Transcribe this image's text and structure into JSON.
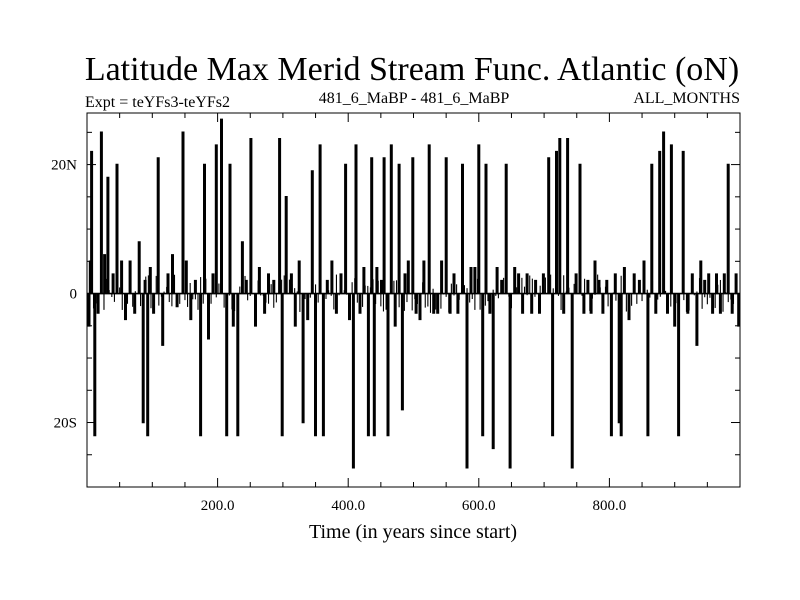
{
  "chart_data": {
    "type": "line",
    "title": "Latitude Max Merid Stream Func. Atlantic (oN)",
    "subtitle_left": "Expt = teYFs3-teYFs2",
    "subtitle_center": "481_6_MaBP - 481_6_MaBP",
    "subtitle_right": "ALL_MONTHS",
    "xlabel": "Time (in years since start)",
    "ylabel": "",
    "xlim": [
      0,
      1000
    ],
    "ylim": [
      -30,
      28
    ],
    "grid": false,
    "xticks": [
      {
        "value": 200,
        "label": "200.0"
      },
      {
        "value": 400,
        "label": "400.0"
      },
      {
        "value": 600,
        "label": "600.0"
      },
      {
        "value": 800,
        "label": "800.0"
      }
    ],
    "yticks": [
      {
        "value": 20,
        "label": "20N"
      },
      {
        "value": 0,
        "label": "0"
      },
      {
        "value": -20,
        "label": "20S"
      }
    ],
    "series": [
      {
        "values_note": "",
        "spikes": [
          [
            3,
            -5
          ],
          [
            5,
            5
          ],
          [
            7,
            22
          ],
          [
            12,
            -22
          ],
          [
            17,
            -3
          ],
          [
            22,
            25
          ],
          [
            27,
            6
          ],
          [
            32,
            18
          ],
          [
            40,
            3
          ],
          [
            46,
            20
          ],
          [
            53,
            5
          ],
          [
            59,
            -4
          ],
          [
            66,
            5
          ],
          [
            73,
            -3
          ],
          [
            80,
            8
          ],
          [
            86,
            -20
          ],
          [
            89,
            2
          ],
          [
            93,
            -22
          ],
          [
            97,
            4
          ],
          [
            102,
            -3
          ],
          [
            109,
            21
          ],
          [
            116,
            -8
          ],
          [
            124,
            3
          ],
          [
            131,
            6
          ],
          [
            138,
            -2
          ],
          [
            147,
            25
          ],
          [
            152,
            5
          ],
          [
            159,
            -4
          ],
          [
            166,
            2
          ],
          [
            174,
            -22
          ],
          [
            180,
            20
          ],
          [
            186,
            -7
          ],
          [
            193,
            3
          ],
          [
            198,
            23
          ],
          [
            206,
            27
          ],
          [
            214,
            -22
          ],
          [
            219,
            20
          ],
          [
            224,
            -5
          ],
          [
            231,
            -22
          ],
          [
            238,
            8
          ],
          [
            244,
            2
          ],
          [
            251,
            24
          ],
          [
            258,
            -5
          ],
          [
            264,
            4
          ],
          [
            272,
            -3
          ],
          [
            278,
            3
          ],
          [
            286,
            2
          ],
          [
            295,
            24
          ],
          [
            299,
            -22
          ],
          [
            305,
            15
          ],
          [
            313,
            3
          ],
          [
            319,
            -5
          ],
          [
            325,
            5
          ],
          [
            331,
            -20
          ],
          [
            338,
            -4
          ],
          [
            345,
            19
          ],
          [
            350,
            -22
          ],
          [
            357,
            23
          ],
          [
            362,
            -22
          ],
          [
            368,
            2
          ],
          [
            375,
            5
          ],
          [
            382,
            -3
          ],
          [
            389,
            3
          ],
          [
            396,
            20
          ],
          [
            402,
            -4
          ],
          [
            408,
            -27
          ],
          [
            412,
            23
          ],
          [
            418,
            -3
          ],
          [
            424,
            4
          ],
          [
            431,
            -22
          ],
          [
            436,
            21
          ],
          [
            440,
            -22
          ],
          [
            444,
            4
          ],
          [
            451,
            2
          ],
          [
            455,
            21
          ],
          [
            461,
            -22
          ],
          [
            466,
            23
          ],
          [
            472,
            -5
          ],
          [
            478,
            20
          ],
          [
            483,
            -18
          ],
          [
            487,
            3
          ],
          [
            492,
            5
          ],
          [
            499,
            21
          ],
          [
            504,
            -3
          ],
          [
            510,
            -4
          ],
          [
            516,
            5
          ],
          [
            524,
            23
          ],
          [
            531,
            -3
          ],
          [
            537,
            -3
          ],
          [
            543,
            5
          ],
          [
            550,
            21
          ],
          [
            556,
            -3
          ],
          [
            562,
            3
          ],
          [
            568,
            -3
          ],
          [
            575,
            20
          ],
          [
            582,
            -27
          ],
          [
            588,
            4
          ],
          [
            594,
            4
          ],
          [
            600,
            23
          ],
          [
            606,
            -22
          ],
          [
            611,
            20
          ],
          [
            617,
            -3
          ],
          [
            622,
            -24
          ],
          [
            628,
            4
          ],
          [
            635,
            2
          ],
          [
            642,
            20
          ],
          [
            648,
            -27
          ],
          [
            655,
            4
          ],
          [
            661,
            3
          ],
          [
            667,
            -3
          ],
          [
            674,
            3
          ],
          [
            681,
            -3
          ],
          [
            687,
            2
          ],
          [
            693,
            -3
          ],
          [
            699,
            3
          ],
          [
            707,
            21
          ],
          [
            713,
            -22
          ],
          [
            719,
            22
          ],
          [
            724,
            24
          ],
          [
            730,
            -3
          ],
          [
            736,
            24
          ],
          [
            743,
            -27
          ],
          [
            749,
            3
          ],
          [
            755,
            20
          ],
          [
            761,
            -3
          ],
          [
            767,
            2
          ],
          [
            772,
            -3
          ],
          [
            778,
            5
          ],
          [
            784,
            2
          ],
          [
            790,
            -3
          ],
          [
            796,
            2
          ],
          [
            803,
            -22
          ],
          [
            809,
            3
          ],
          [
            815,
            -20
          ],
          [
            818,
            -22
          ],
          [
            823,
            4
          ],
          [
            830,
            -4
          ],
          [
            838,
            3
          ],
          [
            846,
            2
          ],
          [
            853,
            5
          ],
          [
            859,
            -22
          ],
          [
            865,
            20
          ],
          [
            871,
            -3
          ],
          [
            877,
            22
          ],
          [
            883,
            25
          ],
          [
            889,
            -3
          ],
          [
            895,
            23
          ],
          [
            900,
            -5
          ],
          [
            906,
            -22
          ],
          [
            913,
            22
          ],
          [
            920,
            -3
          ],
          [
            927,
            3
          ],
          [
            934,
            -8
          ],
          [
            940,
            5
          ],
          [
            946,
            2
          ],
          [
            952,
            3
          ],
          [
            958,
            -3
          ],
          [
            964,
            3
          ],
          [
            970,
            -3
          ],
          [
            976,
            3
          ],
          [
            982,
            20
          ],
          [
            988,
            -3
          ],
          [
            994,
            3
          ],
          [
            998,
            -5
          ]
        ]
      }
    ]
  }
}
